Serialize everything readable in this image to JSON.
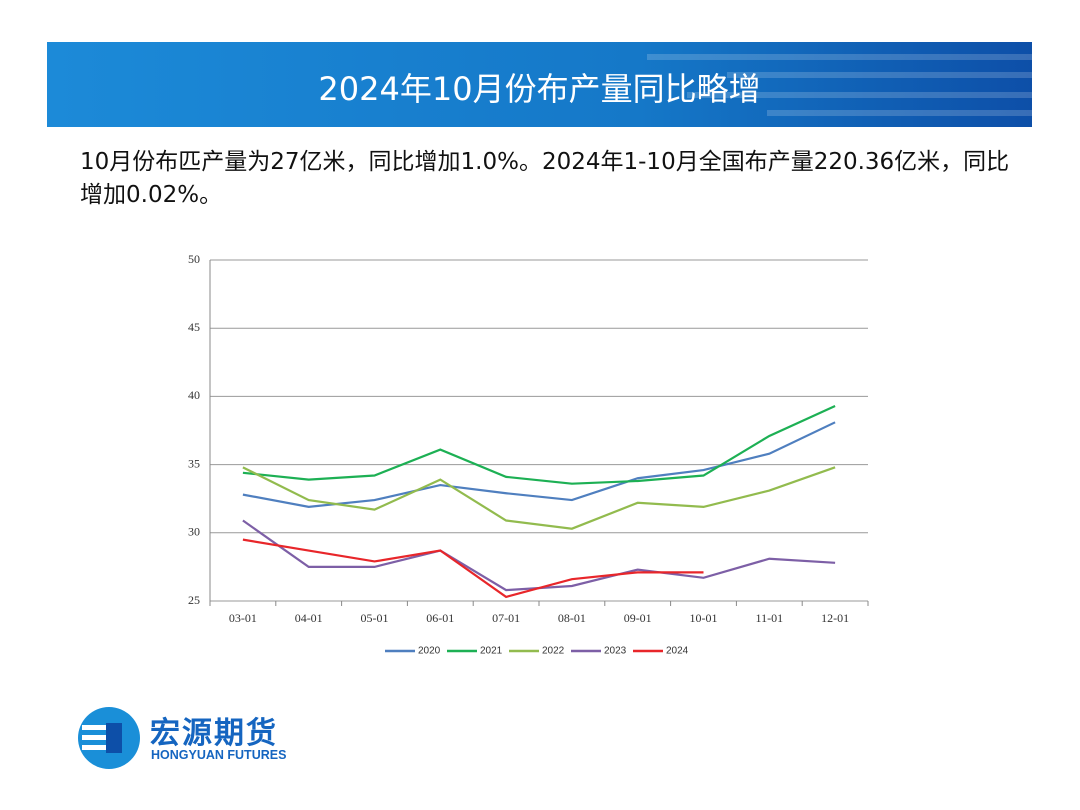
{
  "header": {
    "title": "2024年10月份布产量同比略增"
  },
  "body_text": "10月份布匹产量为27亿米，同比增加1.0%。2024年1-10月全国布产量220.36亿米，同比增加0.02%。",
  "logo": {
    "name": "宏源期货",
    "subtitle": "HONGYUAN FUTURES"
  },
  "chart_data": {
    "type": "line",
    "categories": [
      "03-01",
      "04-01",
      "05-01",
      "06-01",
      "07-01",
      "08-01",
      "09-01",
      "10-01",
      "11-01",
      "12-01"
    ],
    "series": [
      {
        "name": "2020",
        "color": "#4f7fbf",
        "values": [
          32.8,
          31.9,
          32.4,
          33.5,
          32.9,
          32.4,
          34.0,
          34.6,
          35.8,
          38.1
        ]
      },
      {
        "name": "2021",
        "color": "#1db054",
        "values": [
          34.4,
          33.9,
          34.2,
          36.1,
          34.1,
          33.6,
          33.8,
          34.2,
          37.1,
          39.3
        ]
      },
      {
        "name": "2022",
        "color": "#92bb4e",
        "values": [
          34.8,
          32.4,
          31.7,
          33.9,
          30.9,
          30.3,
          32.2,
          31.9,
          33.1,
          34.8
        ]
      },
      {
        "name": "2023",
        "color": "#7d5fa6",
        "values": [
          30.9,
          27.5,
          27.5,
          28.7,
          25.8,
          26.1,
          27.3,
          26.7,
          28.1,
          27.8
        ]
      },
      {
        "name": "2024",
        "color": "#e8262a",
        "values": [
          29.5,
          28.7,
          27.9,
          28.7,
          25.3,
          26.6,
          27.1,
          27.1,
          null,
          null
        ]
      }
    ],
    "ylim": [
      25,
      50
    ],
    "yticks": [
      25,
      30,
      35,
      40,
      45,
      50
    ],
    "grid": true,
    "legend": "bottom"
  }
}
